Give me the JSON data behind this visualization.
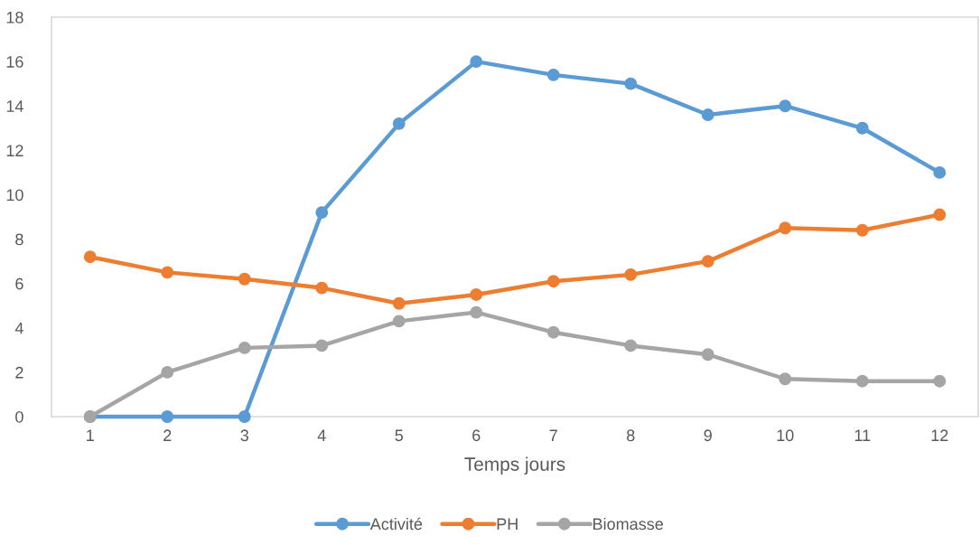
{
  "chart_data": {
    "type": "line",
    "xlabel": "Temps jours",
    "categories": [
      "1",
      "2",
      "3",
      "4",
      "5",
      "6",
      "7",
      "8",
      "9",
      "10",
      "11",
      "12"
    ],
    "series": [
      {
        "name": "Activité",
        "color": "#5b9bd5",
        "values": [
          0,
          0,
          0,
          9.2,
          13.2,
          16,
          15.4,
          15,
          13.6,
          14,
          13,
          11
        ]
      },
      {
        "name": "PH",
        "color": "#ed7d31",
        "values": [
          7.2,
          6.5,
          6.2,
          5.8,
          5.1,
          5.5,
          6.1,
          6.4,
          7,
          8.5,
          8.4,
          9.1
        ]
      },
      {
        "name": "Biomasse",
        "color": "#a5a5a5",
        "values": [
          0,
          2,
          3.1,
          3.2,
          4.3,
          4.7,
          3.8,
          3.2,
          2.8,
          1.7,
          1.6,
          1.6
        ]
      }
    ],
    "ylim": [
      0,
      18
    ],
    "yticks": [
      0,
      2,
      4,
      6,
      8,
      10,
      12,
      14,
      16,
      18
    ],
    "grid": false,
    "legend": "bottom",
    "marker": "circle",
    "line_style": "solid"
  }
}
